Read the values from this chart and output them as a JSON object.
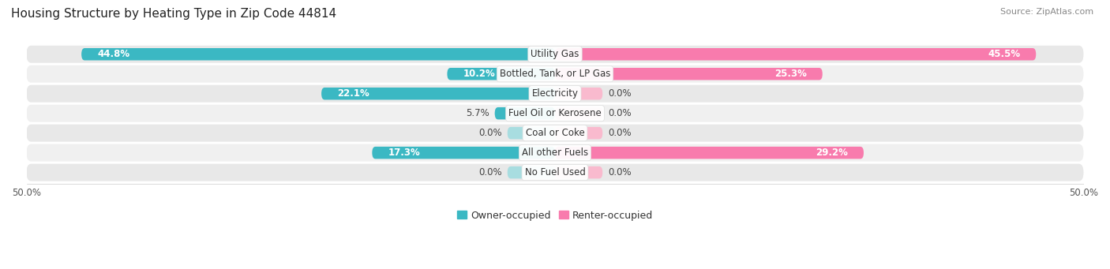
{
  "title": "Housing Structure by Heating Type in Zip Code 44814",
  "source": "Source: ZipAtlas.com",
  "categories": [
    "Utility Gas",
    "Bottled, Tank, or LP Gas",
    "Electricity",
    "Fuel Oil or Kerosene",
    "Coal or Coke",
    "All other Fuels",
    "No Fuel Used"
  ],
  "owner_values": [
    44.8,
    10.2,
    22.1,
    5.7,
    0.0,
    17.3,
    0.0
  ],
  "renter_values": [
    45.5,
    25.3,
    0.0,
    0.0,
    0.0,
    29.2,
    0.0
  ],
  "owner_color": "#3BB8C3",
  "renter_color": "#F87BAD",
  "owner_color_light": "#A8DDE0",
  "renter_color_light": "#F9BACE",
  "owner_label": "Owner-occupied",
  "renter_label": "Renter-occupied",
  "bar_row_bg": [
    "#E8E8E8",
    "#F0F0F0"
  ],
  "xlim": 50.0,
  "title_fontsize": 11,
  "source_fontsize": 8,
  "pct_fontsize": 8.5,
  "cat_fontsize": 8.5,
  "legend_fontsize": 9,
  "axis_label_fontsize": 8.5,
  "bar_height": 0.62,
  "min_stub": 4.5,
  "background_color": "#FFFFFF"
}
